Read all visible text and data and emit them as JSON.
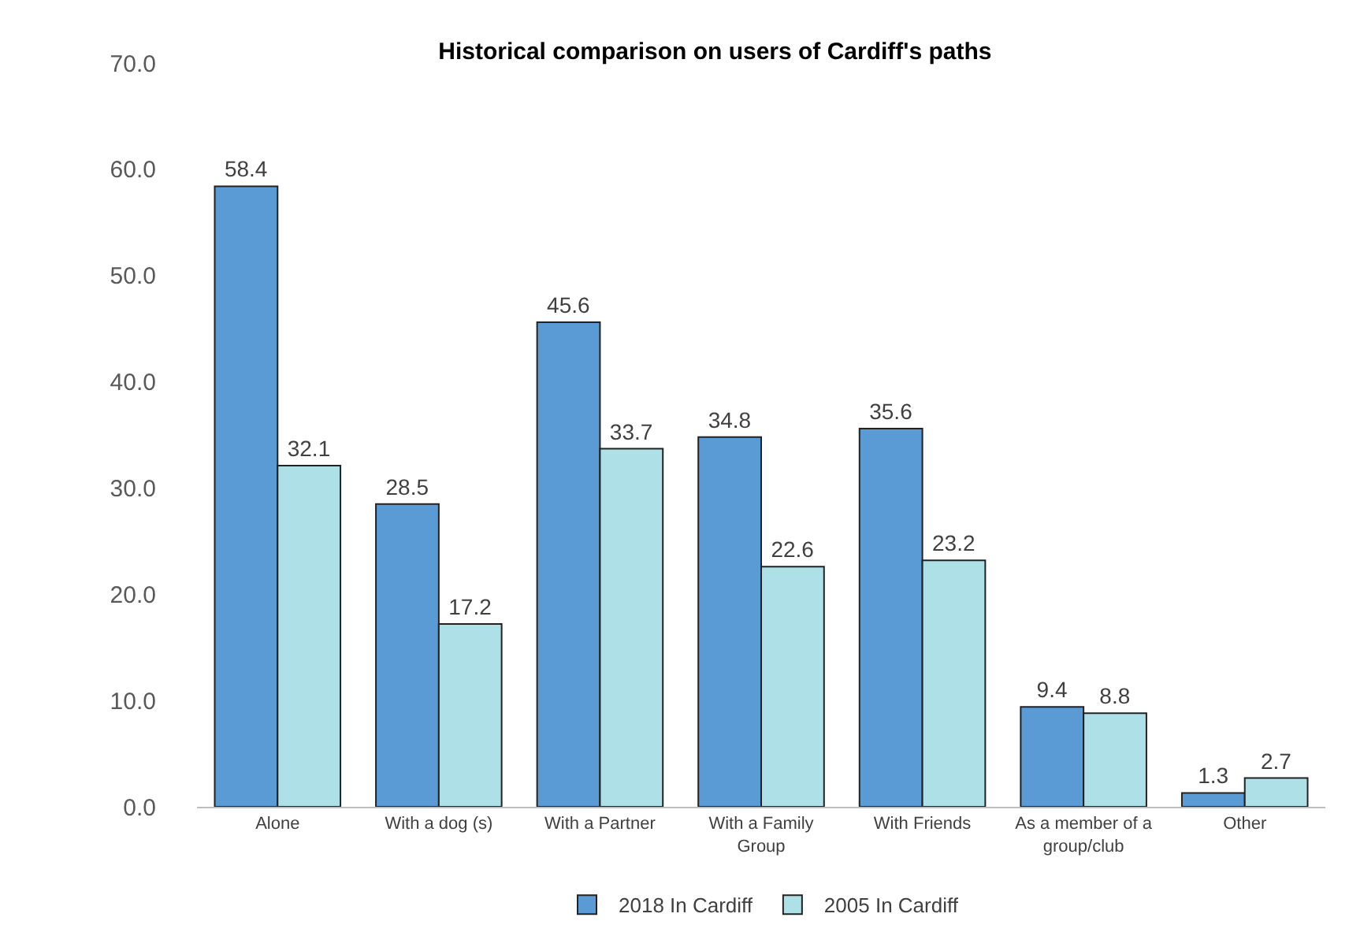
{
  "chart_data": {
    "type": "bar",
    "title": "Historical comparison on users of Cardiff's paths",
    "categories": [
      "Alone",
      "With a dog (s)",
      "With a Partner",
      "With a Family Group",
      "With Friends",
      "As a member of a group/club",
      "Other"
    ],
    "series": [
      {
        "name": "2018 In Cardiff",
        "color": "#5b9bd5",
        "values": [
          58.4,
          28.5,
          45.6,
          34.8,
          35.6,
          9.4,
          1.3
        ]
      },
      {
        "name": "2005 In Cardiff",
        "color": "#aee0e8",
        "values": [
          32.1,
          17.2,
          33.7,
          22.6,
          23.2,
          8.8,
          2.7
        ]
      }
    ],
    "ylim": [
      0,
      70
    ],
    "yticks": [
      {
        "value": 0,
        "label": "0.0"
      },
      {
        "value": 10,
        "label": "10.0"
      },
      {
        "value": 20,
        "label": "20.0"
      },
      {
        "value": 30,
        "label": "30.0"
      },
      {
        "value": 40,
        "label": "40.0"
      },
      {
        "value": 50,
        "label": "50.0"
      },
      {
        "value": 60,
        "label": "60.0"
      },
      {
        "value": 70,
        "label": "70.0"
      }
    ],
    "grid": false,
    "legend": "bottom",
    "data_labels": true
  }
}
